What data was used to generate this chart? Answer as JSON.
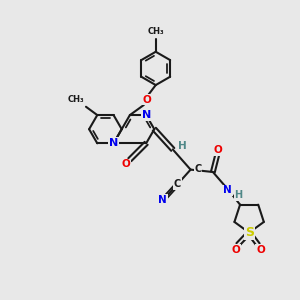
{
  "bg": "#e8e8e8",
  "bc": "#1a1a1a",
  "lw": 1.5,
  "colors": {
    "N": "#0000ee",
    "O": "#ee0000",
    "S": "#cccc00",
    "H": "#508888",
    "C": "#1a1a1a"
  },
  "fs": 7.0
}
